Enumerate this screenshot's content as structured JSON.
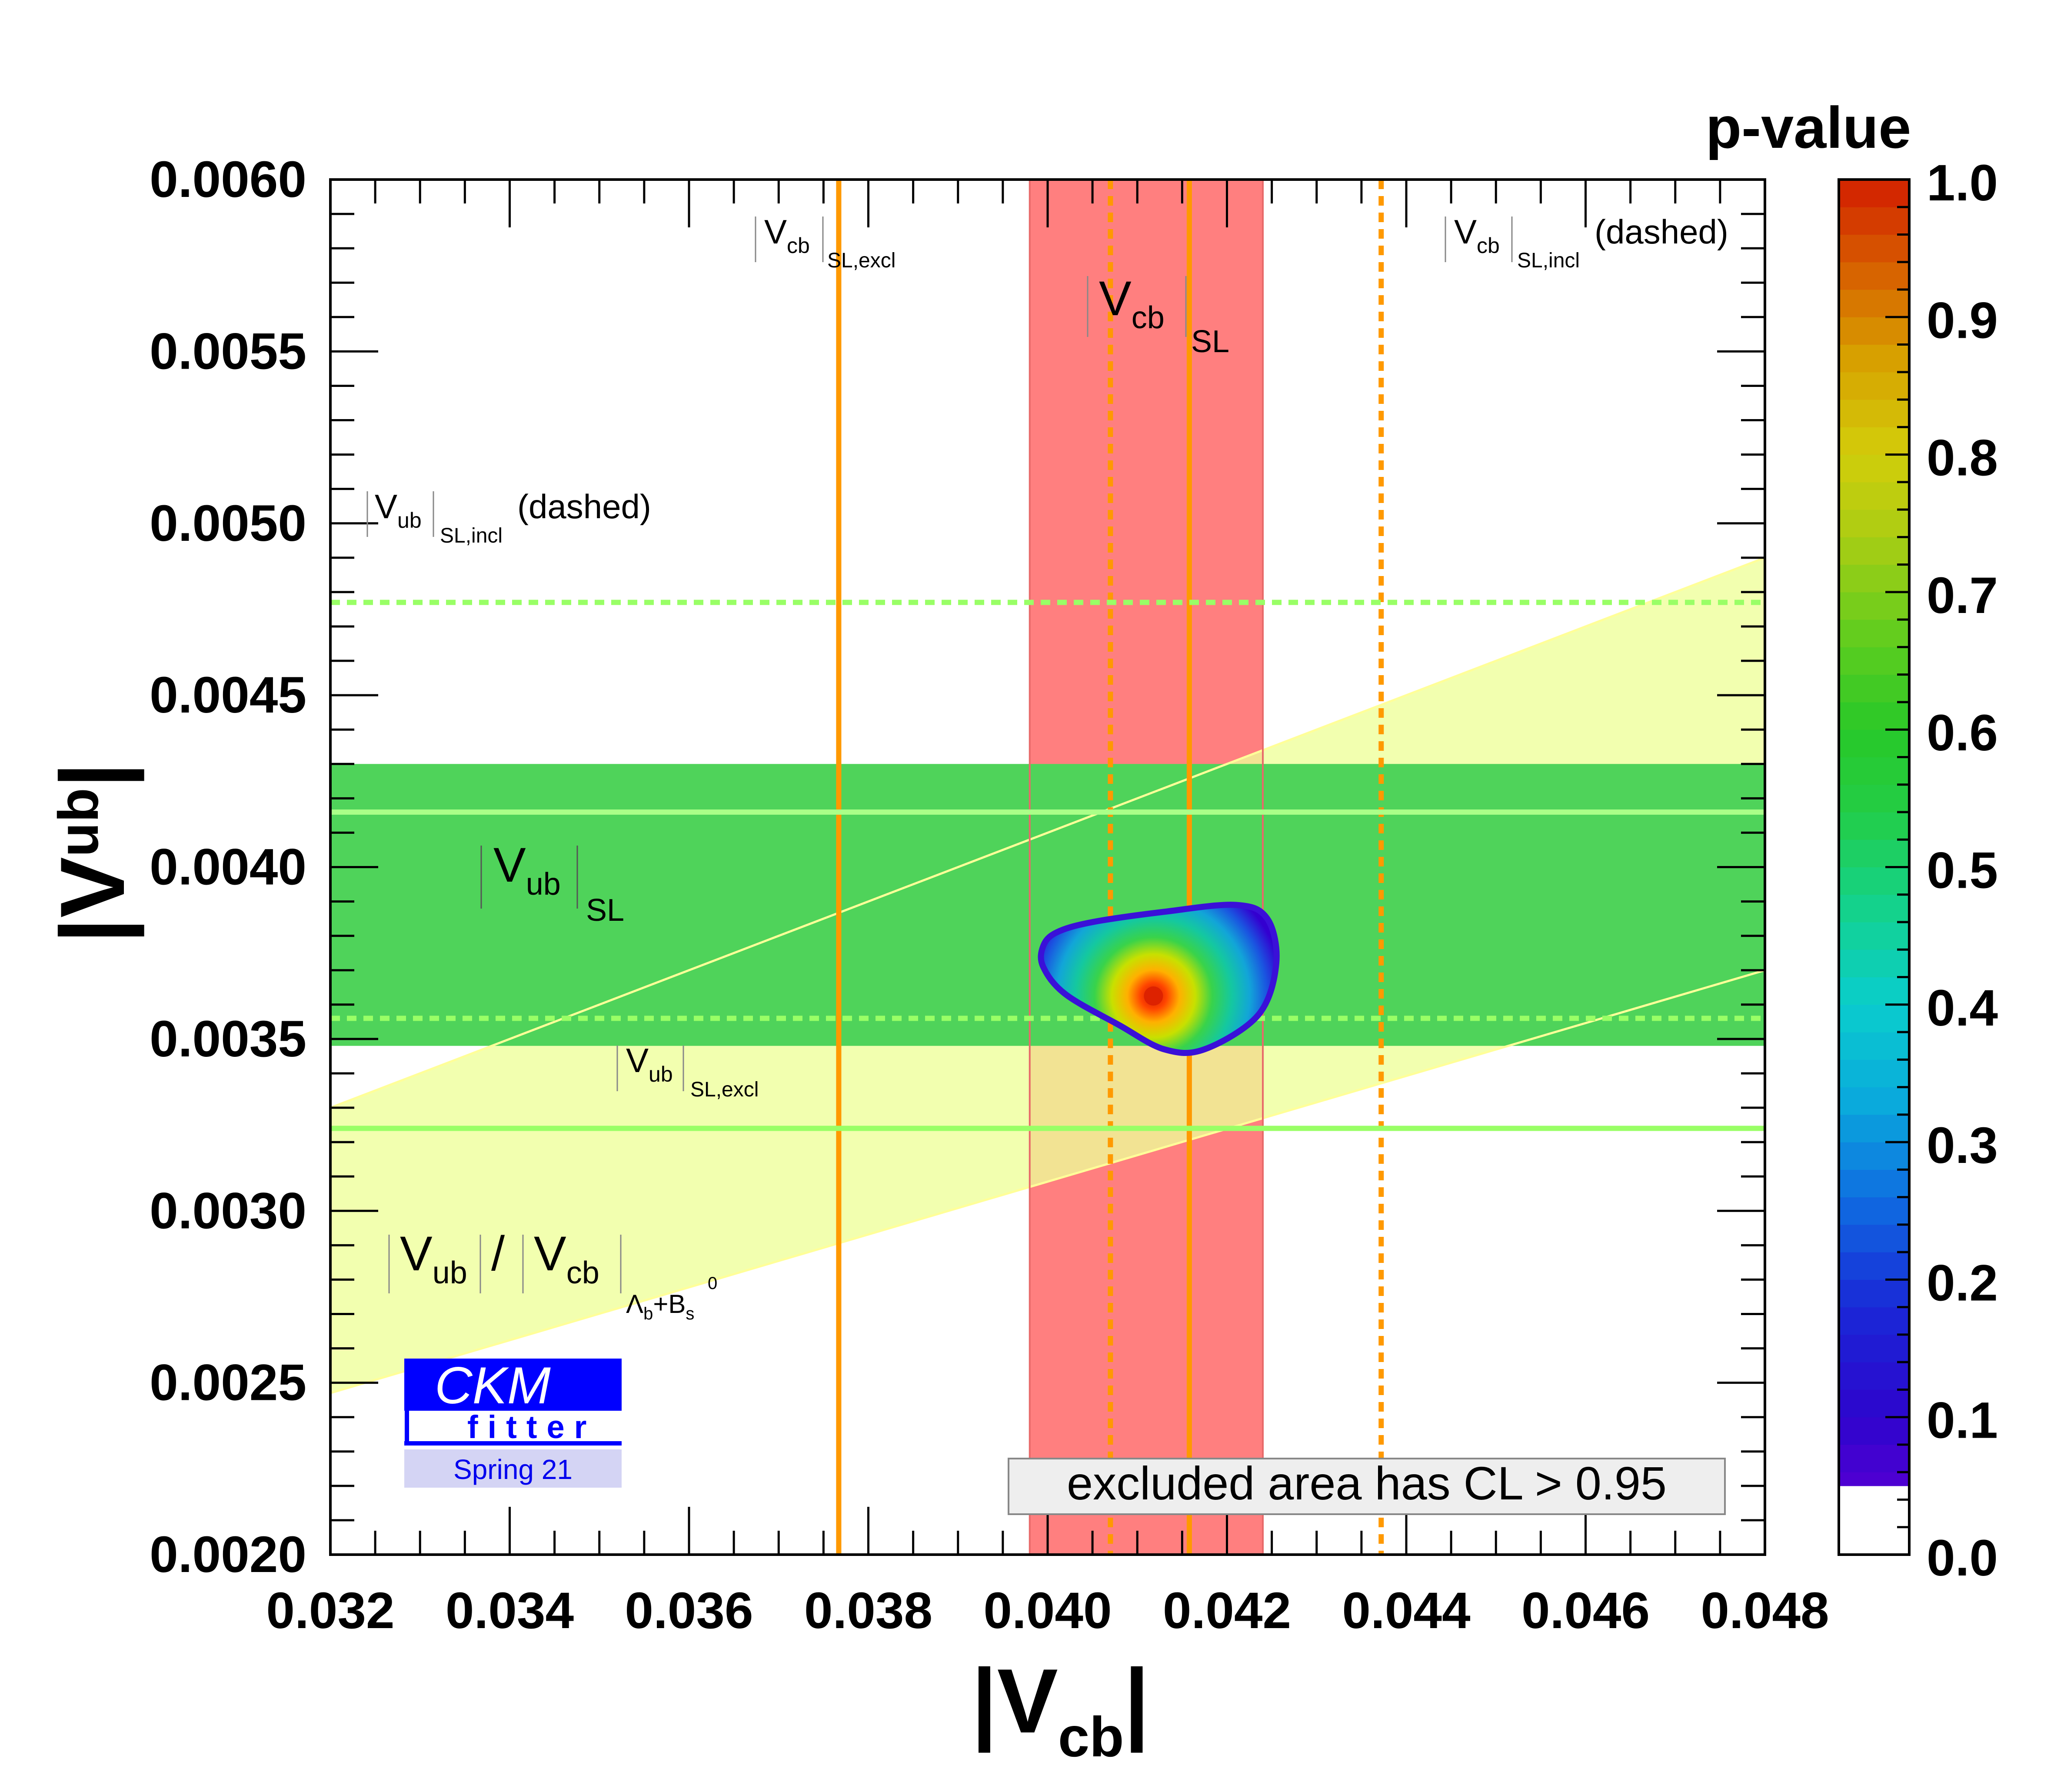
{
  "chart_data": {
    "type": "contour",
    "title": "",
    "xlabel": {
      "base": "|V",
      "sub": "cb",
      "close": "|"
    },
    "ylabel": {
      "base": "|V",
      "sub": "ub",
      "close": "|"
    },
    "xlim": [
      0.032,
      0.048
    ],
    "ylim": [
      0.002,
      0.006
    ],
    "xticks": [
      "0.032",
      "0.034",
      "0.036",
      "0.038",
      "0.040",
      "0.042",
      "0.044",
      "0.046",
      "0.048"
    ],
    "yticks": [
      "0.0020",
      "0.0025",
      "0.0030",
      "0.0035",
      "0.0040",
      "0.0045",
      "0.0050",
      "0.0055",
      "0.0060"
    ],
    "colorbar": {
      "title": "p-value",
      "range": [
        0.0,
        1.0
      ],
      "ticks": [
        "0.0",
        "0.1",
        "0.2",
        "0.3",
        "0.4",
        "0.5",
        "0.6",
        "0.7",
        "0.8",
        "0.9",
        "1.0"
      ],
      "blank_below": 0.05
    },
    "bands": [
      {
        "name": "vcb-sl",
        "orientation": "vertical",
        "range": [
          0.0398,
          0.0424
        ],
        "color": "#ff7f7f"
      },
      {
        "name": "vub-sl",
        "orientation": "horizontal",
        "range": [
          0.00348,
          0.0043
        ],
        "color": "#4fd35a"
      }
    ],
    "diagonal_band": {
      "name": "vub-vcb-ratio",
      "color": "#eeff99",
      "edge_color": "#ffff99",
      "upper_line": [
        [
          0.032,
          0.0033
        ],
        [
          0.048,
          0.0049
        ]
      ],
      "lower_line": [
        [
          0.032,
          0.00247
        ],
        [
          0.048,
          0.0037
        ]
      ]
    },
    "lines": [
      {
        "name": "vcb-sl-excl",
        "orientation": "vertical",
        "value": 0.03767,
        "color": "#ff9900",
        "style": "solid"
      },
      {
        "name": "vcb-sl-center",
        "orientation": "vertical",
        "value": 0.04158,
        "color": "#ff9900",
        "style": "solid"
      },
      {
        "name": "vcb-sl-incl-low",
        "orientation": "vertical",
        "value": 0.0407,
        "color": "#ff9900",
        "style": "dashed"
      },
      {
        "name": "vcb-sl-incl-high",
        "orientation": "vertical",
        "value": 0.04372,
        "color": "#ff9900",
        "style": "dashed"
      },
      {
        "name": "vub-sl-center",
        "orientation": "horizontal",
        "value": 0.00416,
        "color": "#aaff88",
        "style": "solid"
      },
      {
        "name": "vub-sl-excl",
        "orientation": "horizontal",
        "value": 0.00324,
        "color": "#99ff66",
        "style": "solid"
      },
      {
        "name": "vub-sl-incl-high",
        "orientation": "horizontal",
        "value": 0.00477,
        "color": "#99ff66",
        "style": "dashed"
      },
      {
        "name": "vub-sl-incl-low",
        "orientation": "horizontal",
        "value": 0.00356,
        "color": "#99ff66",
        "style": "dashed"
      }
    ],
    "fit_region": {
      "best_fit": [
        0.04118,
        0.003625
      ],
      "p_value_max": 1.0,
      "contour_0p05": [
        [
          0.0405,
          0.00384
        ],
        [
          0.0413,
          0.00387
        ],
        [
          0.0421,
          0.00389
        ],
        [
          0.04245,
          0.00385
        ],
        [
          0.04255,
          0.00372
        ],
        [
          0.04235,
          0.00357
        ],
        [
          0.04175,
          0.00347
        ],
        [
          0.0413,
          0.00347
        ],
        [
          0.0408,
          0.00354
        ],
        [
          0.0402,
          0.00363
        ],
        [
          0.03995,
          0.00371
        ],
        [
          0.03995,
          0.00377
        ],
        [
          0.0401,
          0.00381
        ]
      ]
    },
    "annotations": {
      "vcb_excl": {
        "main": "V",
        "sub": "cb",
        "subsub": "SL,excl"
      },
      "vcb_incl": {
        "main": "V",
        "sub": "cb",
        "subsub": "SL,incl",
        "suffix": "(dashed)"
      },
      "vcb_sl": {
        "main": "V",
        "sub": "cb",
        "subsub": "SL"
      },
      "vub_incl": {
        "main": "V",
        "sub": "ub",
        "subsub": "SL,incl",
        "suffix": "(dashed)"
      },
      "vub_sl": {
        "main": "V",
        "sub": "ub",
        "subsub": "SL"
      },
      "vub_excl": {
        "main": "V",
        "sub": "ub",
        "subsub": "SL,excl"
      },
      "ratio": {
        "num": "V",
        "num_sub": "ub",
        "slash": "/",
        "den": "V",
        "den_sub": "cb",
        "lambda": "Λ",
        "lambda_sub": "b",
        "plus": "+B",
        "bs_sub": "s",
        "bs_sup": "0"
      }
    },
    "legend_box": "excluded area has CL > 0.95",
    "logo": {
      "line1": "CKM",
      "line2": "fitter",
      "line3": "Spring 21"
    }
  }
}
